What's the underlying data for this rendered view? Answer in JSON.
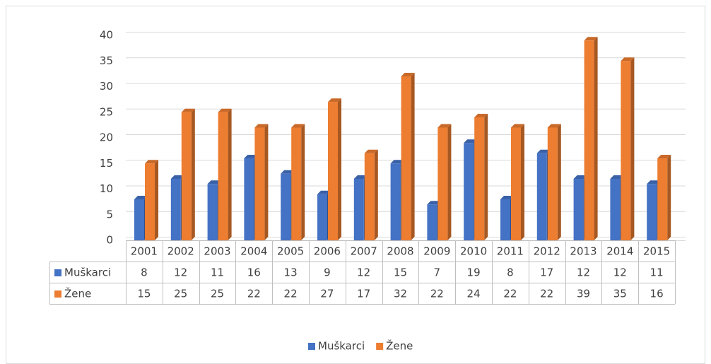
{
  "chart_data": {
    "type": "bar",
    "categories": [
      "2001",
      "2002",
      "2003",
      "2004",
      "2005",
      "2006",
      "2007",
      "2008",
      "2009",
      "2010",
      "2011",
      "2012",
      "2013",
      "2014",
      "2015"
    ],
    "series": [
      {
        "name": "Muškarci",
        "color": "#4472c4",
        "values": [
          8,
          12,
          11,
          16,
          13,
          9,
          12,
          15,
          7,
          19,
          8,
          17,
          12,
          12,
          11
        ]
      },
      {
        "name": "Žene",
        "color": "#ed7d31",
        "values": [
          15,
          25,
          25,
          22,
          22,
          27,
          17,
          32,
          22,
          24,
          22,
          22,
          39,
          35,
          16
        ]
      }
    ],
    "ylim": [
      0,
      40
    ],
    "yticks": [
      0,
      5,
      10,
      15,
      20,
      25,
      30,
      35,
      40
    ],
    "grid": true,
    "legend": "bottom",
    "data_table": true
  }
}
